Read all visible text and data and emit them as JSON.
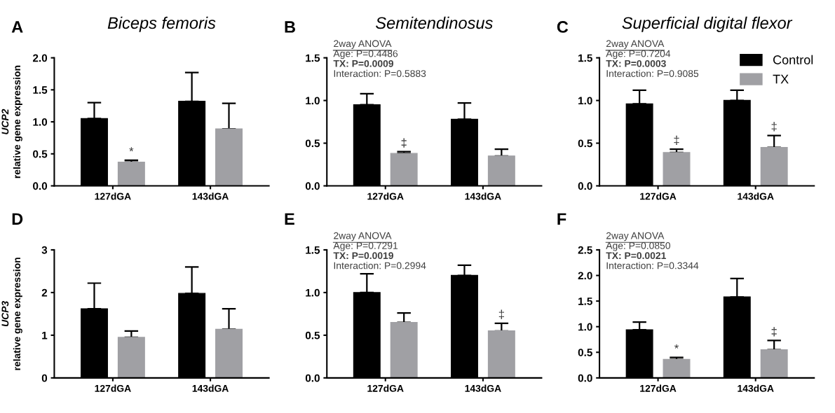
{
  "chart_data": [
    {
      "type": "bar",
      "title": "Biceps femoris",
      "ylabel": "UCP2\nrelative gene expression",
      "categories": [
        "127dGA",
        "143dGA"
      ],
      "ylim": [
        0,
        2.0
      ],
      "yticks": [
        {
          "value": 0,
          "label": "0.0"
        },
        0.5,
        {
          "value": 1,
          "label": "1.0"
        },
        1.5,
        {
          "value": 2,
          "label": "2.0"
        }
      ],
      "series": [
        {
          "color": "#000000",
          "values": [
            1.05,
            1.32
          ],
          "errors": [
            [
              1.05,
              1.3
            ],
            [
              1.32,
              1.77
            ]
          ]
        },
        {
          "color": "#a0a0a4",
          "values": [
            0.37,
            0.89
          ],
          "errors": [
            [
              0.37,
              0.4
            ],
            [
              0.89,
              1.29
            ]
          ],
          "value_labels": [
            "*",
            null
          ]
        }
      ],
      "annotations": [
        "A"
      ],
      "grid": false,
      "legend": false
    },
    {
      "type": "bar",
      "title": "Semitendinosus",
      "categories": [
        "127dGA",
        "143dGA"
      ],
      "ylim": [
        0,
        1.5
      ],
      "yticks": [
        {
          "value": 0,
          "label": "0.0"
        },
        0.5,
        {
          "value": 1,
          "label": "1.0"
        },
        1.5
      ],
      "series": [
        {
          "color": "#000000",
          "values": [
            0.95,
            0.78
          ],
          "errors": [
            [
              0.95,
              1.08
            ],
            [
              0.78,
              0.97
            ]
          ]
        },
        {
          "color": "#a0a0a4",
          "values": [
            0.38,
            0.35
          ],
          "errors": [
            [
              0.38,
              0.4
            ],
            [
              0.35,
              0.43
            ]
          ],
          "value_labels": [
            "‡",
            null
          ]
        }
      ],
      "annotations": [
        "B",
        "2way ANOVA",
        "Age: P=0.4486",
        "TX: P=0.0009",
        "Interaction: P=0.5883"
      ],
      "grid": false,
      "legend": false
    },
    {
      "type": "bar",
      "title": "Superficial digital flexor",
      "categories": [
        "127dGA",
        "143dGA"
      ],
      "ylim": [
        0,
        1.5
      ],
      "yticks": [
        {
          "value": 0,
          "label": "0.0"
        },
        0.5,
        {
          "value": 1,
          "label": "1.0"
        },
        1.5
      ],
      "series": [
        {
          "name": "Control",
          "color": "#000000",
          "values": [
            0.96,
            1.0
          ],
          "errors": [
            [
              0.96,
              1.12
            ],
            [
              1.0,
              1.12
            ]
          ]
        },
        {
          "name": "TX",
          "color": "#a0a0a4",
          "values": [
            0.39,
            0.45
          ],
          "errors": [
            [
              0.39,
              0.43
            ],
            [
              0.45,
              0.59
            ]
          ],
          "value_labels": [
            "‡",
            "‡"
          ]
        }
      ],
      "annotations": [
        "C",
        "2way ANOVA",
        "Age: P=0.7204",
        "TX: P=0.0003",
        "Interaction: P=0.9085"
      ],
      "grid": false,
      "legend": "top right"
    },
    {
      "type": "bar",
      "ylabel": "UCP3\nrelative gene expression",
      "categories": [
        "127dGA",
        "143dGA"
      ],
      "ylim": [
        0,
        3
      ],
      "yticks": [
        0,
        1,
        2,
        3
      ],
      "series": [
        {
          "color": "#000000",
          "values": [
            1.62,
            1.98
          ],
          "errors": [
            [
              1.62,
              2.22
            ],
            [
              1.98,
              2.6
            ]
          ]
        },
        {
          "color": "#a0a0a4",
          "values": [
            0.95,
            1.14
          ],
          "errors": [
            [
              0.95,
              1.1
            ],
            [
              1.14,
              1.62
            ]
          ]
        }
      ],
      "annotations": [
        "D"
      ],
      "grid": false,
      "legend": false
    },
    {
      "type": "bar",
      "categories": [
        "127dGA",
        "143dGA"
      ],
      "ylim": [
        0,
        1.5
      ],
      "yticks": [
        {
          "value": 0,
          "label": "0.0"
        },
        0.5,
        {
          "value": 1,
          "label": "1.0"
        },
        1.5
      ],
      "series": [
        {
          "color": "#000000",
          "values": [
            1.0,
            1.2
          ],
          "errors": [
            [
              1.0,
              1.22
            ],
            [
              1.2,
              1.32
            ]
          ]
        },
        {
          "color": "#a0a0a4",
          "values": [
            0.65,
            0.55
          ],
          "errors": [
            [
              0.65,
              0.76
            ],
            [
              0.55,
              0.64
            ]
          ],
          "value_labels": [
            null,
            "‡"
          ]
        }
      ],
      "annotations": [
        "E",
        "2way ANOVA",
        "Age: P=0.7291",
        "TX: P=0.0019",
        "Interaction: P=0.2994"
      ],
      "grid": false,
      "legend": false
    },
    {
      "type": "bar",
      "categories": [
        "127dGA",
        "143dGA"
      ],
      "ylim": [
        0,
        2.5
      ],
      "yticks": [
        {
          "value": 0,
          "label": "0.0"
        },
        0.5,
        {
          "value": 1,
          "label": "1.0"
        },
        1.5,
        {
          "value": 2,
          "label": "2.0"
        },
        2.5
      ],
      "series": [
        {
          "color": "#000000",
          "values": [
            0.94,
            1.58
          ],
          "errors": [
            [
              0.94,
              1.09
            ],
            [
              1.58,
              1.94
            ]
          ]
        },
        {
          "color": "#a0a0a4",
          "values": [
            0.36,
            0.55
          ],
          "errors": [
            [
              0.36,
              0.4
            ],
            [
              0.55,
              0.73
            ]
          ],
          "value_labels": [
            "*",
            "‡"
          ]
        }
      ],
      "annotations": [
        "F",
        "2way ANOVA",
        "Age: P=0.0850",
        "TX: P=0.0021",
        "Interaction: P=0.3344"
      ],
      "grid": false,
      "legend": false
    }
  ]
}
